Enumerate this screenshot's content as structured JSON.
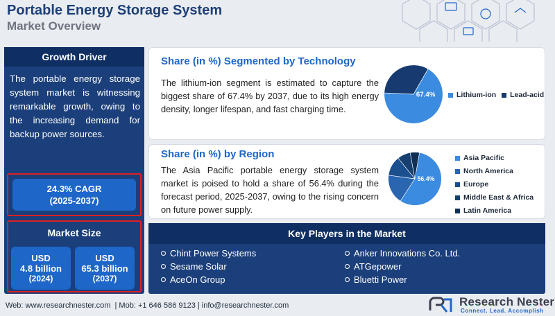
{
  "header": {
    "title": "Portable Energy Storage System",
    "subtitle": "Market Overview"
  },
  "growth_driver": {
    "heading": "Growth Driver",
    "text": "The portable energy storage system market is witnessing remarkable growth, owing to the increasing demand for backup power sources."
  },
  "cagr": {
    "value": "24.3% CAGR",
    "period": "(2025-2037)"
  },
  "market_size": {
    "heading": "Market Size",
    "boxes": [
      {
        "currency": "USD",
        "value": "4.8 billion",
        "year": "(2024)"
      },
      {
        "currency": "USD",
        "value": "65.3 billion",
        "year": "(2037)"
      }
    ]
  },
  "technology": {
    "title": "Share (in %) Segmented by Technology",
    "text": "The lithium-ion segment is estimated to capture the biggest share of 67.4% by 2037, due to its high energy density, longer lifespan, and fast charging time.",
    "pie_label": "67.4%"
  },
  "region": {
    "title": "Share (in %) by Region",
    "text": "The Asia Pacific portable energy storage system market is poised to hold a share of 56.4% during the forecast period, 2025-2037, owing to the rising concern on future power supply.",
    "pie_label": "56.4%"
  },
  "chart_data": [
    {
      "type": "pie",
      "categories": [
        "Lithium-ion",
        "Lead-acid"
      ],
      "values": [
        67.4,
        32.6
      ],
      "colors": [
        "#3b8be0",
        "#173a70"
      ]
    },
    {
      "type": "pie",
      "categories": [
        "Asia Pacific",
        "North America",
        "Europe",
        "Middle East & Africa",
        "Latin America"
      ],
      "values": [
        56.4,
        18,
        12,
        8,
        5.6
      ],
      "colors": [
        "#3b8be0",
        "#2a66b0",
        "#1b4f8e",
        "#16406f",
        "#0f2f55"
      ]
    }
  ],
  "key_players": {
    "heading": "Key Players in the Market",
    "left": [
      "Chint Power Systems",
      "Sesame Solar",
      "AceOn Group"
    ],
    "right": [
      "Anker Innovations Co. Ltd.",
      "ATGepower",
      "Bluetti Power"
    ]
  },
  "footer": {
    "contact": "Web: www.researchnester.com  | Mob: +1 646 586 9123 | info@researchnester.com",
    "brand": "Research Nester",
    "tagline": "Connect. Lead. Accomplish"
  }
}
